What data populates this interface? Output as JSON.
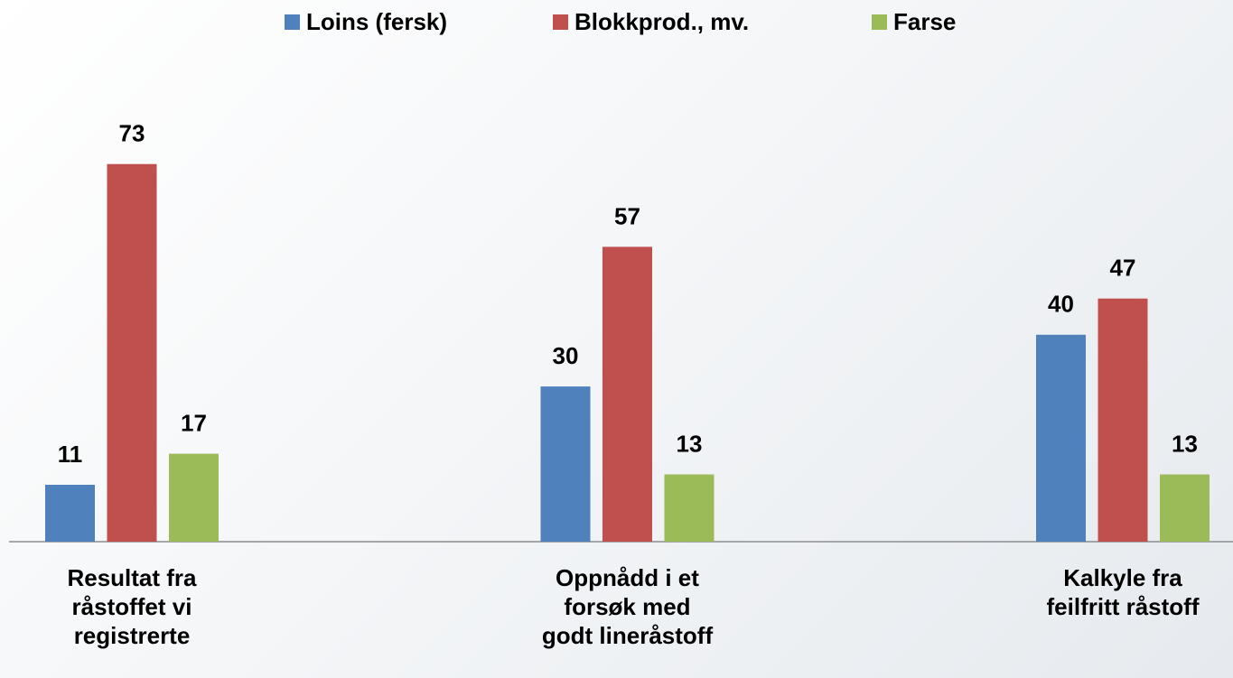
{
  "chart_data": {
    "type": "bar",
    "categories": [
      "Resultat fra\nråstoffet vi\nregistrerte",
      "Oppnådd i et\nforsøk med\ngodt lineråstoff",
      "Kalkyle fra\nfeilfritt råstoff"
    ],
    "series": [
      {
        "name": "Loins (fersk)",
        "color": "#4f81bd",
        "values": [
          11,
          30,
          40
        ]
      },
      {
        "name": "Blokkprod., mv.",
        "color": "#c0504d",
        "values": [
          73,
          57,
          47
        ]
      },
      {
        "name": "Farse",
        "color": "#9bbb59",
        "values": [
          17,
          13,
          13
        ]
      }
    ],
    "ylim": [
      0,
      80
    ],
    "legend": "top"
  }
}
